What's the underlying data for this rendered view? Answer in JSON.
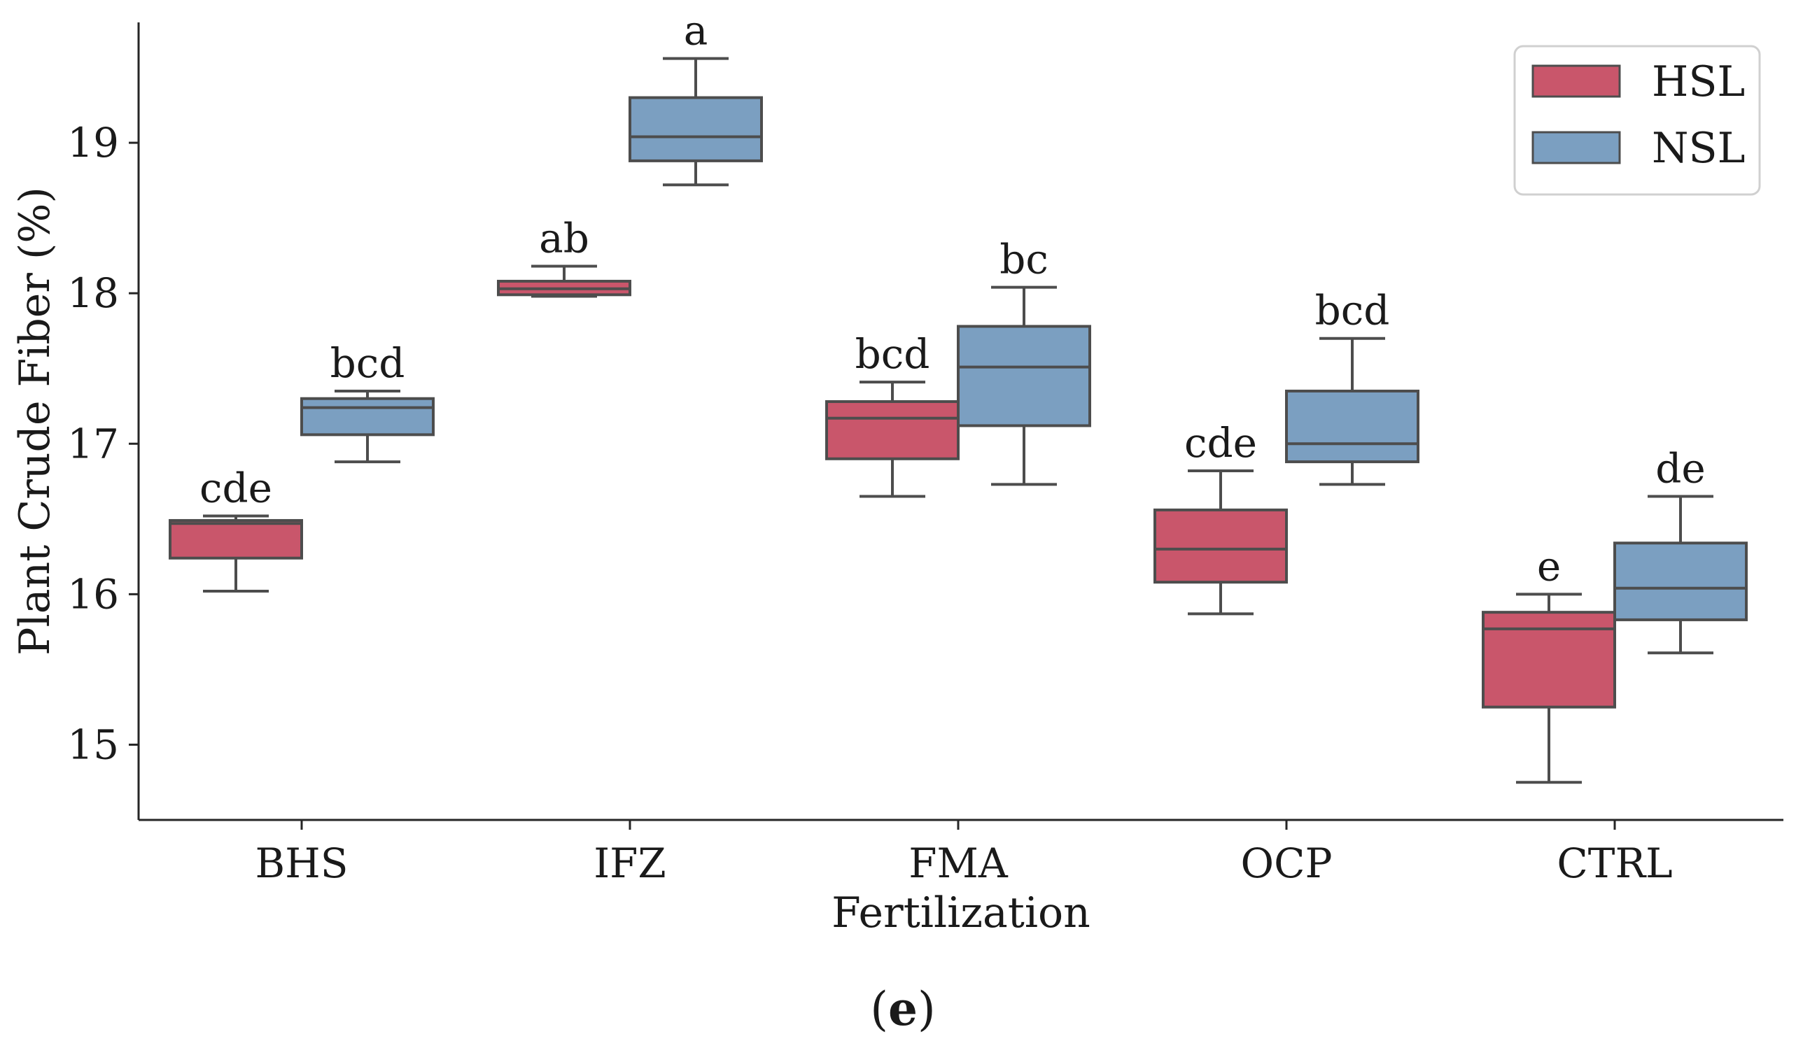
{
  "chart_data": {
    "type": "boxplot",
    "xlabel": "Fertilization",
    "ylabel": "Plant Crude Fiber (%)",
    "ylim": [
      14.5,
      19.8
    ],
    "yticks": [
      15,
      16,
      17,
      18,
      19
    ],
    "categories": [
      "BHS",
      "IFZ",
      "FMA",
      "OCP",
      "CTRL"
    ],
    "legend": {
      "position": "top-right"
    },
    "series": [
      {
        "name": "HSL",
        "color": "#c9566b",
        "boxes": [
          {
            "whisker_low": 16.02,
            "q1": 16.24,
            "median": 16.47,
            "q3": 16.49,
            "whisker_high": 16.52,
            "label": "cde"
          },
          {
            "whisker_low": 17.98,
            "q1": 17.99,
            "median": 18.03,
            "q3": 18.08,
            "whisker_high": 18.18,
            "label": "ab"
          },
          {
            "whisker_low": 16.65,
            "q1": 16.9,
            "median": 17.17,
            "q3": 17.28,
            "whisker_high": 17.41,
            "label": "bcd"
          },
          {
            "whisker_low": 15.87,
            "q1": 16.08,
            "median": 16.3,
            "q3": 16.56,
            "whisker_high": 16.82,
            "label": "cde"
          },
          {
            "whisker_low": 14.75,
            "q1": 15.25,
            "median": 15.77,
            "q3": 15.88,
            "whisker_high": 16.0,
            "label": "e"
          }
        ]
      },
      {
        "name": "NSL",
        "color": "#7b9fc1",
        "boxes": [
          {
            "whisker_low": 16.88,
            "q1": 17.06,
            "median": 17.24,
            "q3": 17.3,
            "whisker_high": 17.35,
            "label": "bcd"
          },
          {
            "whisker_low": 18.72,
            "q1": 18.88,
            "median": 19.04,
            "q3": 19.3,
            "whisker_high": 19.56,
            "label": "a"
          },
          {
            "whisker_low": 16.73,
            "q1": 17.12,
            "median": 17.51,
            "q3": 17.78,
            "whisker_high": 18.04,
            "label": "bc"
          },
          {
            "whisker_low": 16.73,
            "q1": 16.88,
            "median": 17.0,
            "q3": 17.35,
            "whisker_high": 17.7,
            "label": "bcd"
          },
          {
            "whisker_low": 15.61,
            "q1": 15.83,
            "median": 16.04,
            "q3": 16.34,
            "whisker_high": 16.65,
            "label": "de"
          }
        ]
      }
    ]
  },
  "caption": {
    "open": "(",
    "letter": "e",
    "close": ")"
  },
  "colors": {
    "box_edge": "#4d4d4d",
    "axis": "#262626"
  }
}
